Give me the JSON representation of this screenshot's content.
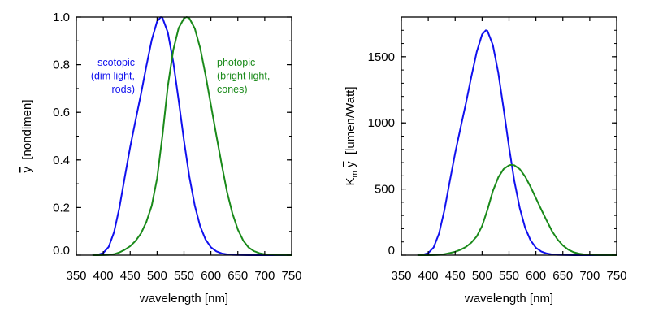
{
  "colors": {
    "scotopic": "#1010ee",
    "photopic": "#1a8a1a",
    "axes": "#000000"
  },
  "chart_data": [
    {
      "type": "line",
      "xlabel": "wavelength  [nm]",
      "ylabel": {
        "symbol": "y",
        "overline": true,
        "unit": "[nondimen]"
      },
      "xlim": [
        350,
        750
      ],
      "ylim": [
        0,
        1.0
      ],
      "xticks": [
        "350",
        "400",
        "450",
        "500",
        "550",
        "600",
        "650",
        "700",
        "750"
      ],
      "yticks": [
        "0.0",
        "0.2",
        "0.4",
        "0.6",
        "0.8",
        "1.0"
      ],
      "grid": false,
      "annotations": [
        {
          "series": "scotopic",
          "lines": [
            "scotopic",
            "(dim light,",
            "rods)"
          ]
        },
        {
          "series": "photopic",
          "lines": [
            "photopic",
            "(bright light,",
            "cones)"
          ]
        }
      ],
      "series": [
        {
          "key": "scotopic",
          "x": [
            380,
            390,
            400,
            410,
            420,
            430,
            440,
            450,
            460,
            470,
            480,
            490,
            500,
            507,
            510,
            520,
            530,
            540,
            550,
            560,
            570,
            580,
            590,
            600,
            610,
            620,
            630,
            640,
            650,
            660,
            670,
            680,
            690,
            700,
            710,
            720,
            730,
            740,
            750
          ],
          "y": [
            0.0006,
            0.0022,
            0.0093,
            0.0348,
            0.0966,
            0.1998,
            0.3281,
            0.455,
            0.567,
            0.676,
            0.793,
            0.904,
            0.982,
            1.0,
            0.997,
            0.935,
            0.811,
            0.65,
            0.481,
            0.329,
            0.208,
            0.121,
            0.066,
            0.033,
            0.016,
            0.0074,
            0.0033,
            0.0015,
            0.0007,
            0.0003,
            0.0001,
            0,
            0,
            0,
            0,
            0,
            0,
            0,
            0
          ]
        },
        {
          "key": "photopic",
          "x": [
            380,
            390,
            400,
            410,
            420,
            430,
            440,
            450,
            460,
            470,
            480,
            490,
            500,
            510,
            520,
            530,
            540,
            550,
            555,
            560,
            570,
            580,
            590,
            600,
            610,
            620,
            630,
            640,
            650,
            660,
            670,
            680,
            690,
            700,
            710,
            720,
            730,
            740,
            750
          ],
          "y": [
            4e-05,
            0.00012,
            0.0004,
            0.0012,
            0.004,
            0.0116,
            0.023,
            0.038,
            0.06,
            0.091,
            0.139,
            0.208,
            0.323,
            0.503,
            0.71,
            0.862,
            0.954,
            0.995,
            1.0,
            0.995,
            0.952,
            0.87,
            0.757,
            0.631,
            0.503,
            0.381,
            0.265,
            0.175,
            0.107,
            0.061,
            0.032,
            0.017,
            0.0082,
            0.0041,
            0.0021,
            0.00105,
            0.00052,
            0.00025,
            0.00012
          ]
        }
      ]
    },
    {
      "type": "line",
      "xlabel": "wavelength  [nm]",
      "ylabel": {
        "prefix": "K",
        "subscript": "m",
        "symbol": "y",
        "overline": true,
        "unit": "[lumen/Watt]"
      },
      "xlim": [
        350,
        750
      ],
      "ylim": [
        0,
        1800
      ],
      "xticks": [
        "350",
        "400",
        "450",
        "500",
        "550",
        "600",
        "650",
        "700",
        "750"
      ],
      "yticks": [
        "0",
        "500",
        "1000",
        "1500"
      ],
      "grid": false,
      "series": [
        {
          "key": "scotopic",
          "x": [
            380,
            390,
            400,
            410,
            420,
            430,
            440,
            450,
            460,
            470,
            480,
            490,
            500,
            507,
            510,
            520,
            530,
            540,
            550,
            560,
            570,
            580,
            590,
            600,
            610,
            620,
            630,
            640,
            650,
            660,
            670,
            680,
            690,
            700,
            710,
            720,
            730,
            740,
            750
          ],
          "y": [
            1.0,
            3.8,
            15.8,
            59.2,
            164.2,
            339.7,
            557.8,
            773.5,
            963.9,
            1149.2,
            1348.1,
            1536.8,
            1669.4,
            1700,
            1694.9,
            1589.5,
            1378.7,
            1105,
            817.7,
            559.3,
            353.6,
            205.7,
            112.2,
            56.1,
            27.2,
            12.6,
            5.6,
            2.6,
            1.2,
            0.5,
            0.2,
            0,
            0,
            0,
            0,
            0,
            0,
            0,
            0
          ]
        },
        {
          "key": "photopic",
          "x": [
            380,
            390,
            400,
            410,
            420,
            430,
            440,
            450,
            460,
            470,
            480,
            490,
            500,
            510,
            520,
            530,
            540,
            550,
            555,
            560,
            570,
            580,
            590,
            600,
            610,
            620,
            630,
            640,
            650,
            660,
            670,
            680,
            690,
            700,
            710,
            720,
            730,
            740,
            750
          ],
          "y": [
            0.03,
            0.08,
            0.27,
            0.82,
            2.7,
            7.9,
            15.7,
            26.0,
            41.0,
            62.2,
            94.9,
            142.1,
            220.6,
            343.5,
            484.9,
            588.7,
            651.6,
            679.6,
            683,
            679.6,
            650.2,
            594.2,
            517.0,
            431.0,
            343.5,
            260.2,
            181.0,
            119.5,
            73.1,
            41.7,
            21.9,
            11.6,
            5.6,
            2.8,
            1.4,
            0.7,
            0.4,
            0.2,
            0.1
          ]
        }
      ]
    }
  ]
}
